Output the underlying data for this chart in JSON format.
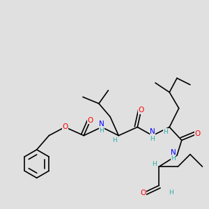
{
  "bg_color": "#e0e0e0",
  "bond_color": "#000000",
  "bond_width": 1.2,
  "atom_colors": {
    "H": "#2dada8",
    "N": "#0000ff",
    "O": "#ff0000",
    "C": "#000000"
  },
  "figsize": [
    3.0,
    3.0
  ],
  "dpi": 100,
  "xlim": [
    -0.5,
    10.5
  ],
  "ylim": [
    -0.5,
    10.5
  ]
}
